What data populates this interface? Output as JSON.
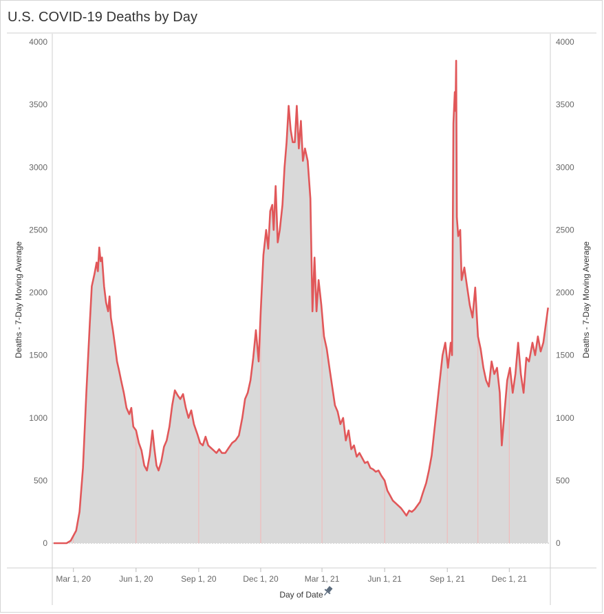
{
  "title": "U.S. COVID-19 Deaths by Day",
  "pin_icon": "pin-icon",
  "colors": {
    "line": "#e15759",
    "area": "#d9d9d9",
    "gridline": "#f4b6b6"
  },
  "chart_data": {
    "type": "area",
    "title": "U.S. COVID-19 Deaths by Day",
    "xlabel": "Day of Date",
    "ylabel_left": "Deaths - 7-Day Moving Average",
    "ylabel_right": "Deaths - 7-Day Moving Average",
    "ylim": [
      0,
      4000
    ],
    "yticks": [
      "4000",
      "3500",
      "3000",
      "2500",
      "2000",
      "1500",
      "1000",
      "500",
      "0"
    ],
    "xticks": [
      "Mar 1, 20",
      "Jun 1, 20",
      "Sep 1, 20",
      "Dec 1, 20",
      "Mar 1, 21",
      "Jun 1, 21",
      "Sep 1, 21",
      "Dec 1, 21"
    ],
    "x_range": [
      "2020-02-01",
      "2022-01-27"
    ],
    "grid": "vertical month lines",
    "series": [
      {
        "name": "Deaths - 7-Day Moving Average",
        "points": [
          [
            "2020-02-01",
            0
          ],
          [
            "2020-02-20",
            0
          ],
          [
            "2020-02-26",
            20
          ],
          [
            "2020-03-05",
            100
          ],
          [
            "2020-03-10",
            250
          ],
          [
            "2020-03-15",
            600
          ],
          [
            "2020-03-20",
            1200
          ],
          [
            "2020-03-25",
            1750
          ],
          [
            "2020-03-28",
            2050
          ],
          [
            "2020-04-01",
            2150
          ],
          [
            "2020-04-04",
            2240
          ],
          [
            "2020-04-06",
            2170
          ],
          [
            "2020-04-08",
            2360
          ],
          [
            "2020-04-10",
            2250
          ],
          [
            "2020-04-12",
            2280
          ],
          [
            "2020-04-15",
            2050
          ],
          [
            "2020-04-18",
            1920
          ],
          [
            "2020-04-21",
            1850
          ],
          [
            "2020-04-23",
            1970
          ],
          [
            "2020-04-25",
            1800
          ],
          [
            "2020-04-28",
            1700
          ],
          [
            "2020-05-01",
            1580
          ],
          [
            "2020-05-04",
            1450
          ],
          [
            "2020-05-07",
            1380
          ],
          [
            "2020-05-10",
            1300
          ],
          [
            "2020-05-14",
            1200
          ],
          [
            "2020-05-18",
            1080
          ],
          [
            "2020-05-22",
            1030
          ],
          [
            "2020-05-25",
            1080
          ],
          [
            "2020-05-28",
            930
          ],
          [
            "2020-06-01",
            900
          ],
          [
            "2020-06-05",
            800
          ],
          [
            "2020-06-09",
            740
          ],
          [
            "2020-06-13",
            620
          ],
          [
            "2020-06-17",
            580
          ],
          [
            "2020-06-21",
            700
          ],
          [
            "2020-06-25",
            900
          ],
          [
            "2020-06-28",
            750
          ],
          [
            "2020-07-01",
            620
          ],
          [
            "2020-07-04",
            580
          ],
          [
            "2020-07-08",
            650
          ],
          [
            "2020-07-12",
            770
          ],
          [
            "2020-07-16",
            820
          ],
          [
            "2020-07-20",
            930
          ],
          [
            "2020-07-24",
            1100
          ],
          [
            "2020-07-28",
            1220
          ],
          [
            "2020-08-01",
            1180
          ],
          [
            "2020-08-05",
            1150
          ],
          [
            "2020-08-09",
            1190
          ],
          [
            "2020-08-13",
            1080
          ],
          [
            "2020-08-17",
            1000
          ],
          [
            "2020-08-21",
            1060
          ],
          [
            "2020-08-25",
            950
          ],
          [
            "2020-08-30",
            870
          ],
          [
            "2020-09-03",
            800
          ],
          [
            "2020-09-07",
            780
          ],
          [
            "2020-09-11",
            850
          ],
          [
            "2020-09-15",
            780
          ],
          [
            "2020-09-19",
            760
          ],
          [
            "2020-09-23",
            740
          ],
          [
            "2020-09-27",
            720
          ],
          [
            "2020-10-01",
            750
          ],
          [
            "2020-10-05",
            720
          ],
          [
            "2020-10-10",
            720
          ],
          [
            "2020-10-15",
            760
          ],
          [
            "2020-10-20",
            800
          ],
          [
            "2020-10-25",
            820
          ],
          [
            "2020-10-30",
            860
          ],
          [
            "2020-11-04",
            1000
          ],
          [
            "2020-11-08",
            1150
          ],
          [
            "2020-11-12",
            1200
          ],
          [
            "2020-11-16",
            1300
          ],
          [
            "2020-11-20",
            1480
          ],
          [
            "2020-11-24",
            1700
          ],
          [
            "2020-11-28",
            1450
          ],
          [
            "2020-12-01",
            1850
          ],
          [
            "2020-12-05",
            2300
          ],
          [
            "2020-12-09",
            2500
          ],
          [
            "2020-12-12",
            2350
          ],
          [
            "2020-12-15",
            2650
          ],
          [
            "2020-12-18",
            2700
          ],
          [
            "2020-12-20",
            2500
          ],
          [
            "2020-12-23",
            2850
          ],
          [
            "2020-12-26",
            2400
          ],
          [
            "2020-12-29",
            2500
          ],
          [
            "2021-01-02",
            2700
          ],
          [
            "2021-01-05",
            3000
          ],
          [
            "2021-01-08",
            3200
          ],
          [
            "2021-01-11",
            3490
          ],
          [
            "2021-01-14",
            3300
          ],
          [
            "2021-01-17",
            3200
          ],
          [
            "2021-01-20",
            3200
          ],
          [
            "2021-01-23",
            3490
          ],
          [
            "2021-01-26",
            3150
          ],
          [
            "2021-01-29",
            3370
          ],
          [
            "2021-02-01",
            3050
          ],
          [
            "2021-02-04",
            3150
          ],
          [
            "2021-02-08",
            3050
          ],
          [
            "2021-02-12",
            2750
          ],
          [
            "2021-02-15",
            1850
          ],
          [
            "2021-02-18",
            2280
          ],
          [
            "2021-02-21",
            1850
          ],
          [
            "2021-02-24",
            2100
          ],
          [
            "2021-02-28",
            1900
          ],
          [
            "2021-03-04",
            1650
          ],
          [
            "2021-03-08",
            1550
          ],
          [
            "2021-03-12",
            1400
          ],
          [
            "2021-03-16",
            1250
          ],
          [
            "2021-03-20",
            1100
          ],
          [
            "2021-03-24",
            1050
          ],
          [
            "2021-03-28",
            950
          ],
          [
            "2021-04-01",
            1000
          ],
          [
            "2021-04-05",
            820
          ],
          [
            "2021-04-09",
            900
          ],
          [
            "2021-04-13",
            750
          ],
          [
            "2021-04-17",
            780
          ],
          [
            "2021-04-21",
            690
          ],
          [
            "2021-04-25",
            720
          ],
          [
            "2021-04-29",
            680
          ],
          [
            "2021-05-03",
            640
          ],
          [
            "2021-05-07",
            650
          ],
          [
            "2021-05-11",
            600
          ],
          [
            "2021-05-15",
            590
          ],
          [
            "2021-05-19",
            570
          ],
          [
            "2021-05-23",
            580
          ],
          [
            "2021-05-27",
            540
          ],
          [
            "2021-06-01",
            500
          ],
          [
            "2021-06-05",
            420
          ],
          [
            "2021-06-09",
            380
          ],
          [
            "2021-06-13",
            340
          ],
          [
            "2021-06-17",
            320
          ],
          [
            "2021-06-21",
            300
          ],
          [
            "2021-06-25",
            280
          ],
          [
            "2021-06-29",
            250
          ],
          [
            "2021-07-03",
            220
          ],
          [
            "2021-07-07",
            260
          ],
          [
            "2021-07-11",
            250
          ],
          [
            "2021-07-15",
            270
          ],
          [
            "2021-07-19",
            300
          ],
          [
            "2021-07-23",
            330
          ],
          [
            "2021-07-27",
            400
          ],
          [
            "2021-08-01",
            480
          ],
          [
            "2021-08-05",
            580
          ],
          [
            "2021-08-09",
            700
          ],
          [
            "2021-08-13",
            900
          ],
          [
            "2021-08-17",
            1100
          ],
          [
            "2021-08-21",
            1300
          ],
          [
            "2021-08-25",
            1500
          ],
          [
            "2021-08-29",
            1600
          ],
          [
            "2021-09-02",
            1400
          ],
          [
            "2021-09-06",
            1600
          ],
          [
            "2021-09-08",
            1500
          ],
          [
            "2021-09-10",
            3350
          ],
          [
            "2021-09-12",
            3600
          ],
          [
            "2021-09-13",
            3450
          ],
          [
            "2021-09-14",
            3850
          ],
          [
            "2021-09-15",
            2600
          ],
          [
            "2021-09-17",
            2450
          ],
          [
            "2021-09-20",
            2500
          ],
          [
            "2021-09-22",
            2100
          ],
          [
            "2021-09-26",
            2200
          ],
          [
            "2021-09-30",
            2050
          ],
          [
            "2021-10-04",
            1900
          ],
          [
            "2021-10-08",
            1800
          ],
          [
            "2021-10-12",
            2040
          ],
          [
            "2021-10-16",
            1650
          ],
          [
            "2021-10-20",
            1550
          ],
          [
            "2021-10-24",
            1400
          ],
          [
            "2021-10-28",
            1300
          ],
          [
            "2021-11-01",
            1250
          ],
          [
            "2021-11-05",
            1450
          ],
          [
            "2021-11-09",
            1350
          ],
          [
            "2021-11-13",
            1400
          ],
          [
            "2021-11-17",
            1200
          ],
          [
            "2021-11-20",
            780
          ],
          [
            "2021-11-24",
            1050
          ],
          [
            "2021-11-28",
            1300
          ],
          [
            "2021-12-02",
            1400
          ],
          [
            "2021-12-06",
            1200
          ],
          [
            "2021-12-10",
            1350
          ],
          [
            "2021-12-14",
            1600
          ],
          [
            "2021-12-18",
            1350
          ],
          [
            "2021-12-22",
            1200
          ],
          [
            "2021-12-26",
            1480
          ],
          [
            "2021-12-30",
            1450
          ],
          [
            "2022-01-04",
            1600
          ],
          [
            "2022-01-08",
            1500
          ],
          [
            "2022-01-12",
            1650
          ],
          [
            "2022-01-16",
            1530
          ],
          [
            "2022-01-20",
            1600
          ],
          [
            "2022-01-27",
            1880
          ]
        ]
      }
    ]
  }
}
